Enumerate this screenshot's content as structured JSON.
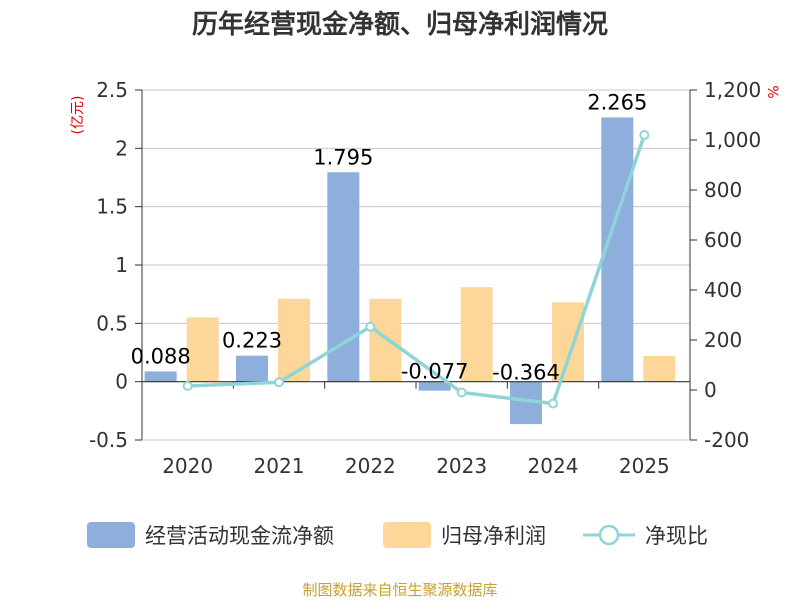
{
  "chart_data": {
    "type": "bar",
    "title": "历年经营现金净额、归母净利润情况",
    "categories": [
      "2020",
      "2021",
      "2022",
      "2023",
      "2024",
      "2025"
    ],
    "left_axis": {
      "unit": "(亿元)",
      "ylim": [
        -0.5,
        2.5
      ],
      "ticks": [
        -0.5,
        0,
        0.5,
        1,
        1.5,
        2,
        2.5
      ],
      "tick_labels": [
        "-0.5",
        "0",
        "0.5",
        "1",
        "1.5",
        "2",
        "2.5"
      ]
    },
    "right_axis": {
      "unit": "%",
      "ylim": [
        -200,
        1200
      ],
      "ticks": [
        -200,
        0,
        200,
        400,
        600,
        800,
        1000,
        1200
      ],
      "tick_labels": [
        "-200",
        "0",
        "200",
        "400",
        "600",
        "800",
        "1,000",
        "1,200"
      ]
    },
    "series": [
      {
        "name": "经营活动现金流净额",
        "kind": "bar",
        "axis": "left",
        "color": "#8eaedb",
        "values": [
          0.088,
          0.223,
          1.795,
          -0.077,
          -0.364,
          2.265
        ],
        "labels": [
          "0.088",
          "0.223",
          "1.795",
          "-0.077",
          "-0.364",
          "2.265"
        ]
      },
      {
        "name": "归母净利润",
        "kind": "bar",
        "axis": "left",
        "color": "#fdd79a",
        "values": [
          0.55,
          0.71,
          0.71,
          0.81,
          0.68,
          0.22
        ]
      },
      {
        "name": "净现比",
        "kind": "line",
        "axis": "right",
        "color": "#8fd4d9",
        "values": [
          16,
          31,
          253,
          -10,
          -54,
          1020
        ]
      }
    ],
    "grid": true,
    "legend_position": "bottom"
  },
  "source_text": "制图数据来自恒生聚源数据库"
}
